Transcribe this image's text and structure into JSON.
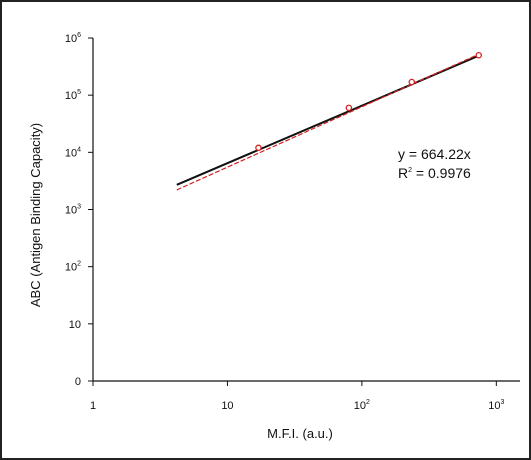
{
  "chart_data": {
    "type": "scatter",
    "title": "",
    "xlabel": "M.F.I. (a.u.)",
    "ylabel": "ABC (Antigen Binding Capacity)",
    "x_scale": "log10",
    "y_scale": "log10",
    "xlim": [
      1,
      1500
    ],
    "ylim": [
      1,
      1000000
    ],
    "x_ticks": [
      {
        "value": 1,
        "base": "1",
        "exp": ""
      },
      {
        "value": 10,
        "base": "10",
        "exp": ""
      },
      {
        "value": 100,
        "base": "10",
        "exp": "2"
      },
      {
        "value": 1000,
        "base": "10",
        "exp": "3"
      }
    ],
    "y_ticks": [
      {
        "value": 1,
        "base": "0",
        "exp": ""
      },
      {
        "value": 10,
        "base": "10",
        "exp": ""
      },
      {
        "value": 100,
        "base": "10",
        "exp": "2"
      },
      {
        "value": 1000,
        "base": "10",
        "exp": "3"
      },
      {
        "value": 10000,
        "base": "10",
        "exp": "4"
      },
      {
        "value": 100000,
        "base": "10",
        "exp": "5"
      },
      {
        "value": 1000000,
        "base": "10",
        "exp": "6"
      }
    ],
    "series": [
      {
        "marker": "circle",
        "color": "#d42020",
        "x": [
          17,
          80,
          235,
          740
        ],
        "y": [
          12000,
          60000,
          170000,
          500000
        ]
      }
    ],
    "lines": [
      {
        "kind": "fit",
        "color": "#111111",
        "x": [
          4.2,
          740
        ],
        "y": [
          2700,
          490000
        ]
      },
      {
        "kind": "trend",
        "color": "#d42020",
        "dashed": true,
        "x": [
          4.2,
          740
        ],
        "y": [
          2200,
          520000
        ]
      }
    ],
    "annotations": {
      "equation": "y = 664.22x",
      "r2_prefix": "R",
      "r2_exp": "2",
      "r2_value": " = 0.9976"
    },
    "grid": false
  }
}
